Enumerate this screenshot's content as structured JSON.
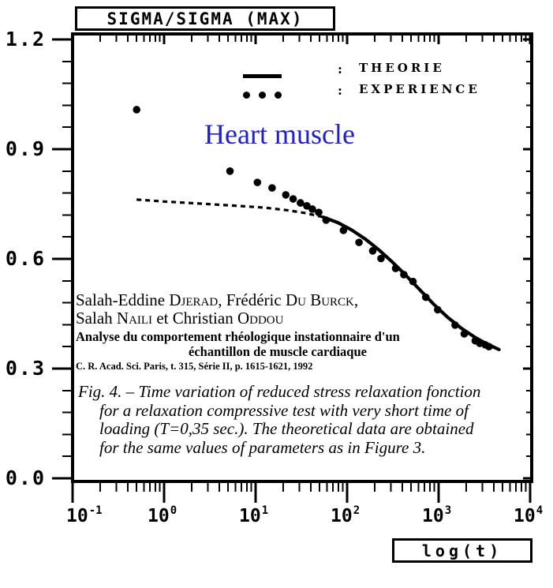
{
  "figure": {
    "title_box_label": "SIGMA/SIGMA (MAX)",
    "xlabel_box_label": "log(t)",
    "annotation": {
      "text": "Heart muscle",
      "color": "#2121cc"
    },
    "legend": {
      "theory_separator": ":",
      "theory_label": "THEORIE",
      "experience_separator": ":",
      "experience_label": "EXPERIENCE"
    },
    "citation": {
      "line1_parts": [
        "Salah-Eddine ",
        "Djerad",
        ", Frédéric ",
        "Du Burck",
        ","
      ],
      "line2_parts": [
        "Salah ",
        "Naili",
        " et Christian ",
        "Oddou"
      ],
      "line3": "Analyse du comportement rhéologique instationnaire d'un",
      "line4": "échantillon de muscle cardiaque",
      "line5": "C. R. Acad. Sci. Paris, t. 315, Série II, p. 1615-1621, 1992"
    },
    "caption": {
      "line1": "Fig. 4. –  Time variation of reduced stress relaxation fonction",
      "line2": "for a relaxation compressive test with very short time of",
      "line3": "loading (T=0,35 sec.).   The theoretical data are obtained",
      "line4": "for the same values of parameters as in Figure 3."
    }
  },
  "chart_data": {
    "type": "line",
    "title": "SIGMA/SIGMA (MAX)",
    "xlabel": "log(t)",
    "ylabel": "SIGMA/SIGMA (MAX)",
    "x_scale": "log10",
    "x_range": [
      -1,
      4
    ],
    "x_tick_base": "10",
    "x_tick_exponents": [
      -1,
      0,
      1,
      2,
      3,
      4
    ],
    "y_range": [
      0,
      1.2
    ],
    "y_tick_labels": [
      "0.0",
      "0.3",
      "0.6",
      "0.9",
      "1.2"
    ],
    "y_minor_step": 0.06,
    "grid": false,
    "legend_position": "top-center-inside",
    "ink_color": "#000000",
    "series": [
      {
        "name": "THEORIE",
        "type": "line",
        "dashed_until_logt": 1.74,
        "points_logt_sigma": [
          [
            -0.3,
            0.762
          ],
          [
            0.0,
            0.757
          ],
          [
            0.4,
            0.751
          ],
          [
            0.8,
            0.745
          ],
          [
            1.1,
            0.74
          ],
          [
            1.35,
            0.733
          ],
          [
            1.55,
            0.725
          ],
          [
            1.74,
            0.714
          ],
          [
            1.9,
            0.699
          ],
          [
            2.05,
            0.679
          ],
          [
            2.2,
            0.654
          ],
          [
            2.35,
            0.624
          ],
          [
            2.5,
            0.59
          ],
          [
            2.65,
            0.553
          ],
          [
            2.8,
            0.514
          ],
          [
            2.95,
            0.475
          ],
          [
            3.1,
            0.44
          ],
          [
            3.25,
            0.41
          ],
          [
            3.4,
            0.385
          ],
          [
            3.5,
            0.371
          ],
          [
            3.6,
            0.359
          ],
          [
            3.66,
            0.352
          ]
        ]
      },
      {
        "name": "EXPERIENCE",
        "type": "scatter",
        "points_logt_sigma": [
          [
            -0.3,
            1.008
          ],
          [
            0.72,
            0.84
          ],
          [
            1.02,
            0.809
          ],
          [
            1.18,
            0.794
          ],
          [
            1.33,
            0.775
          ],
          [
            1.41,
            0.764
          ],
          [
            1.49,
            0.753
          ],
          [
            1.56,
            0.745
          ],
          [
            1.62,
            0.736
          ],
          [
            1.69,
            0.727
          ],
          [
            1.77,
            0.706
          ],
          [
            1.96,
            0.678
          ],
          [
            2.13,
            0.645
          ],
          [
            2.28,
            0.622
          ],
          [
            2.37,
            0.601
          ],
          [
            2.53,
            0.574
          ],
          [
            2.62,
            0.557
          ],
          [
            2.72,
            0.538
          ],
          [
            2.86,
            0.495
          ],
          [
            2.99,
            0.461
          ],
          [
            3.18,
            0.419
          ],
          [
            3.28,
            0.395
          ],
          [
            3.4,
            0.376
          ],
          [
            3.45,
            0.369
          ],
          [
            3.51,
            0.365
          ],
          [
            3.55,
            0.36
          ]
        ]
      }
    ]
  }
}
